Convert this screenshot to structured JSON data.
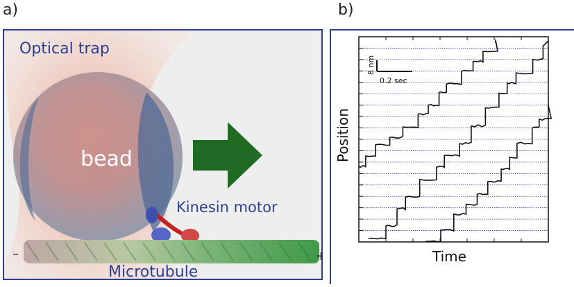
{
  "panel_a": {
    "letter": "a)",
    "optical_trap_label": "Optical trap",
    "bead_label": "bead",
    "kinesin_label": "Kinesin motor",
    "microtubule_label": "Microtubule",
    "minus_end": "–",
    "plus_end": "+"
  },
  "panel_b": {
    "letter": "b)",
    "chart_data": {
      "type": "line",
      "xlabel": "Time",
      "ylabel": "Position",
      "scale_bar": {
        "y_label": "8 nm",
        "x_label": "0.2 sec"
      },
      "series": [
        {
          "steps": 12
        },
        {
          "steps": 14
        },
        {
          "steps": 11
        }
      ]
    }
  },
  "colors": {
    "frame": "#2e3f8f",
    "arrow": "#1f6b23",
    "bead": "#5b6f94",
    "trace": "#111111",
    "grid": "#3a3aa8"
  }
}
